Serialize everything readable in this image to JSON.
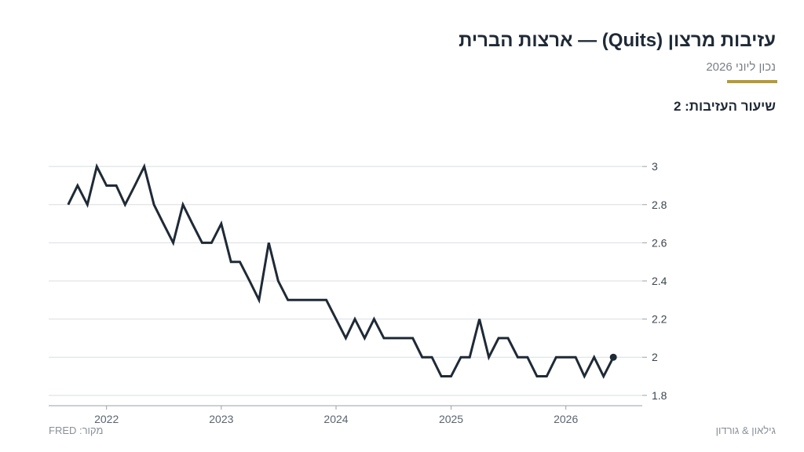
{
  "header": {
    "title": "עזיבות מרצון (Quits) — ארצות הברית",
    "subtitle": "נכון ליוני 2026",
    "current_label": "שיעור העזיבות:",
    "current_value": "2"
  },
  "footer": {
    "source": "מקור: FRED",
    "credit": "גילאון & גורדון"
  },
  "colors": {
    "accent": "#b59a35",
    "line": "#1f2a36",
    "grid": "#d9dde2",
    "axis": "#9aa1a9"
  },
  "chart_data": {
    "type": "line",
    "ylim": [
      1.75,
      3.05
    ],
    "yticks": [
      1.8,
      2,
      2.2,
      2.4,
      2.6,
      2.8,
      3
    ],
    "yaxis_side": "right",
    "grid": true,
    "xticks": [
      "2022",
      "2023",
      "2024",
      "2025",
      "2026"
    ],
    "xtick_dates": [
      "2022-01-01",
      "2023-01-01",
      "2024-01-01",
      "2025-01-01",
      "2026-01-01"
    ],
    "x_range": [
      "2021-07-01",
      "2026-09-01"
    ],
    "end_marker": true,
    "series": [
      {
        "x": [
          "2021-09",
          "2021-10",
          "2021-11",
          "2021-12",
          "2022-01",
          "2022-02",
          "2022-03",
          "2022-04",
          "2022-05",
          "2022-06",
          "2022-07",
          "2022-08",
          "2022-09",
          "2022-10",
          "2022-11",
          "2022-12",
          "2023-01",
          "2023-02",
          "2023-03",
          "2023-04",
          "2023-05",
          "2023-06",
          "2023-07",
          "2023-08",
          "2023-09",
          "2023-10",
          "2023-11",
          "2023-12",
          "2024-01",
          "2024-02",
          "2024-03",
          "2024-04",
          "2024-05",
          "2024-06",
          "2024-07",
          "2024-08",
          "2024-09",
          "2024-10",
          "2024-11",
          "2024-12",
          "2025-01",
          "2025-02",
          "2025-03",
          "2025-04",
          "2025-05",
          "2025-06",
          "2025-07",
          "2025-08",
          "2025-09",
          "2025-10",
          "2025-11",
          "2025-12",
          "2026-01",
          "2026-02",
          "2026-03",
          "2026-04",
          "2026-05",
          "2026-06"
        ],
        "values": [
          2.8,
          2.9,
          2.8,
          3.0,
          2.9,
          2.9,
          2.8,
          2.9,
          3.0,
          2.8,
          2.7,
          2.6,
          2.8,
          2.7,
          2.6,
          2.6,
          2.7,
          2.5,
          2.5,
          2.4,
          2.3,
          2.6,
          2.4,
          2.3,
          2.3,
          2.3,
          2.3,
          2.3,
          2.2,
          2.1,
          2.2,
          2.1,
          2.2,
          2.1,
          2.1,
          2.1,
          2.1,
          2.0,
          2.0,
          1.9,
          1.9,
          2.0,
          2.0,
          2.2,
          2.0,
          2.1,
          2.1,
          2.0,
          2.0,
          1.9,
          1.9,
          2.0,
          2.0,
          2.0,
          1.9,
          2.0,
          1.9,
          2.0
        ]
      }
    ]
  }
}
